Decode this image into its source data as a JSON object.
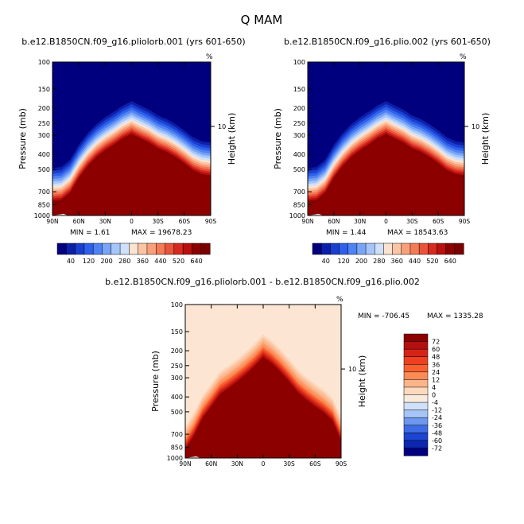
{
  "figure_title": "Q  MAM",
  "chart_data": [
    {
      "type": "heatmap",
      "title": "b.e12.B1850CN.f09_g16.pliolorb.001 (yrs 601-650)",
      "xlabel": "",
      "ylabel": "Pressure (mb)",
      "ylabel_right": "Height (km)",
      "right_unit": "%",
      "right_tick_labels": [
        "10"
      ],
      "x_tick_labels": [
        "90N",
        "60N",
        "30N",
        "0",
        "30S",
        "60S",
        "90S"
      ],
      "y_tick_labels": [
        "100",
        "150",
        "200",
        "250",
        "300",
        "400",
        "500",
        "700",
        "850",
        "1000"
      ],
      "y_ticks": [
        100,
        150,
        200,
        250,
        300,
        400,
        500,
        700,
        850,
        1000
      ],
      "ylim": [
        1000,
        100
      ],
      "y_scale": "log",
      "x": [
        -90,
        90
      ],
      "min_label": "MIN =    1.61",
      "max_label": "MAX = 19678.23",
      "colorbar_labels": [
        "40",
        "120",
        "200",
        "280",
        "360",
        "440",
        "520",
        "640"
      ],
      "colorbar_colors": [
        "#00007f",
        "#0c1fa8",
        "#1a3fd0",
        "#2e60ea",
        "#4f82f2",
        "#7aa5f6",
        "#a6c6fa",
        "#cfe0fc",
        "#fbe3d0",
        "#fbc4a4",
        "#f8a07a",
        "#f37b56",
        "#e9533a",
        "#d62a1f",
        "#b90f0f",
        "#8c0000",
        "#7a0000"
      ],
      "contour_level_pressure": [
        {
          "lat": -90,
          "p": 540
        },
        {
          "lat": -80,
          "p": 530
        },
        {
          "lat": -70,
          "p": 500
        },
        {
          "lat": -60,
          "p": 450
        },
        {
          "lat": -50,
          "p": 410
        },
        {
          "lat": -40,
          "p": 380
        },
        {
          "lat": -30,
          "p": 360
        },
        {
          "lat": -20,
          "p": 330
        },
        {
          "lat": -10,
          "p": 310
        },
        {
          "lat": 0,
          "p": 290
        },
        {
          "lat": 10,
          "p": 310
        },
        {
          "lat": 20,
          "p": 340
        },
        {
          "lat": 30,
          "p": 370
        },
        {
          "lat": 40,
          "p": 410
        },
        {
          "lat": 50,
          "p": 470
        },
        {
          "lat": 60,
          "p": 560
        },
        {
          "lat": 70,
          "p": 700
        },
        {
          "lat": 80,
          "p": 780
        },
        {
          "lat": 90,
          "p": 790
        }
      ]
    },
    {
      "type": "heatmap",
      "title": "b.e12.B1850CN.f09_g16.plio.002 (yrs 601-650)",
      "xlabel": "",
      "ylabel": "Pressure (mb)",
      "ylabel_right": "Height (km)",
      "right_unit": "%",
      "right_tick_labels": [
        "10"
      ],
      "x_tick_labels": [
        "90N",
        "60N",
        "30N",
        "0",
        "30S",
        "60S",
        "90S"
      ],
      "y_tick_labels": [
        "100",
        "150",
        "200",
        "250",
        "300",
        "400",
        "500",
        "700",
        "850",
        "1000"
      ],
      "y_ticks": [
        100,
        150,
        200,
        250,
        300,
        400,
        500,
        700,
        850,
        1000
      ],
      "ylim": [
        1000,
        100
      ],
      "y_scale": "log",
      "min_label": "MIN =    1.44",
      "max_label": "MAX = 18543.63",
      "colorbar_labels": [
        "40",
        "120",
        "200",
        "280",
        "360",
        "440",
        "520",
        "640"
      ],
      "colorbar_colors": [
        "#00007f",
        "#0c1fa8",
        "#1a3fd0",
        "#2e60ea",
        "#4f82f2",
        "#7aa5f6",
        "#a6c6fa",
        "#cfe0fc",
        "#fbe3d0",
        "#fbc4a4",
        "#f8a07a",
        "#f37b56",
        "#e9533a",
        "#d62a1f",
        "#b90f0f",
        "#8c0000",
        "#7a0000"
      ],
      "contour_level_pressure": [
        {
          "lat": -90,
          "p": 540
        },
        {
          "lat": -80,
          "p": 530
        },
        {
          "lat": -70,
          "p": 500
        },
        {
          "lat": -60,
          "p": 450
        },
        {
          "lat": -50,
          "p": 410
        },
        {
          "lat": -40,
          "p": 380
        },
        {
          "lat": -30,
          "p": 360
        },
        {
          "lat": -20,
          "p": 330
        },
        {
          "lat": -10,
          "p": 310
        },
        {
          "lat": 0,
          "p": 290
        },
        {
          "lat": 10,
          "p": 310
        },
        {
          "lat": 20,
          "p": 340
        },
        {
          "lat": 30,
          "p": 370
        },
        {
          "lat": 40,
          "p": 410
        },
        {
          "lat": 50,
          "p": 470
        },
        {
          "lat": 60,
          "p": 560
        },
        {
          "lat": 70,
          "p": 700
        },
        {
          "lat": 80,
          "p": 780
        },
        {
          "lat": 90,
          "p": 790
        }
      ]
    },
    {
      "type": "heatmap",
      "title": "b.e12.B1850CN.f09_g16.pliolorb.001 - b.e12.B1850CN.f09_g16.plio.002",
      "xlabel": "",
      "ylabel": "Pressure (mb)",
      "ylabel_right": "Height (km)",
      "right_unit": "%",
      "right_tick_labels": [
        "10"
      ],
      "x_tick_labels": [
        "90N",
        "60N",
        "30N",
        "0",
        "30S",
        "60S",
        "90S"
      ],
      "y_tick_labels": [
        "100",
        "150",
        "200",
        "250",
        "300",
        "400",
        "500",
        "700",
        "850",
        "1000"
      ],
      "y_ticks": [
        100,
        150,
        200,
        250,
        300,
        400,
        500,
        700,
        850,
        1000
      ],
      "ylim": [
        1000,
        100
      ],
      "y_scale": "log",
      "min_label": "MIN = -706.45",
      "max_label": "MAX = 1335.28",
      "colorbar_labels": [
        "72",
        "60",
        "48",
        "36",
        "24",
        "12",
        "4",
        "0",
        "-4",
        "-12",
        "-24",
        "-36",
        "-48",
        "-60",
        "-72"
      ],
      "colorbar_colors": [
        "#8c0000",
        "#b41010",
        "#d42418",
        "#ec4020",
        "#f86030",
        "#fb8a55",
        "#fcb48a",
        "#fcd9bd",
        "#f8ebdd",
        "#cfe0fa",
        "#a6c4f5",
        "#6d98ee",
        "#3d6ce4",
        "#1c46d2",
        "#0c26b0",
        "#00007f"
      ],
      "contour_level_pressure": [
        {
          "lat": -90,
          "p": 700
        },
        {
          "lat": -80,
          "p": 520
        },
        {
          "lat": -70,
          "p": 460
        },
        {
          "lat": -60,
          "p": 420
        },
        {
          "lat": -50,
          "p": 380
        },
        {
          "lat": -40,
          "p": 340
        },
        {
          "lat": -30,
          "p": 290
        },
        {
          "lat": -20,
          "p": 250
        },
        {
          "lat": -10,
          "p": 220
        },
        {
          "lat": 0,
          "p": 200
        },
        {
          "lat": 10,
          "p": 230
        },
        {
          "lat": 20,
          "p": 260
        },
        {
          "lat": 30,
          "p": 290
        },
        {
          "lat": 40,
          "p": 320
        },
        {
          "lat": 50,
          "p": 350
        },
        {
          "lat": 60,
          "p": 420
        },
        {
          "lat": 70,
          "p": 500
        },
        {
          "lat": 80,
          "p": 650
        },
        {
          "lat": 90,
          "p": 800
        }
      ]
    }
  ]
}
